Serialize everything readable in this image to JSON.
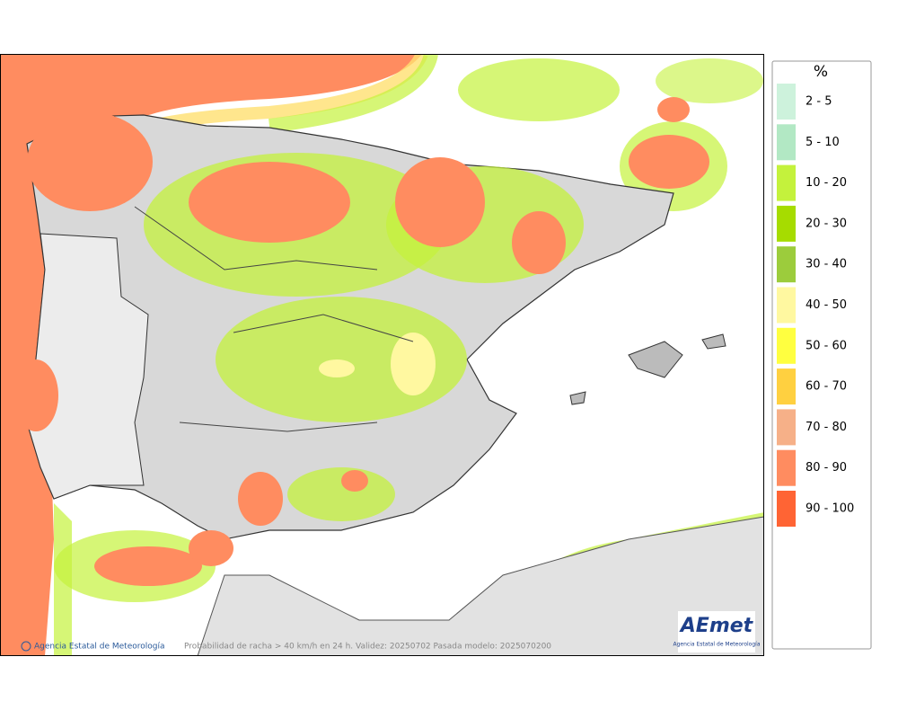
{
  "legend": {
    "title": "%",
    "items": [
      {
        "label": "2 - 5",
        "color": "#cdf2dc"
      },
      {
        "label": "5 - 10",
        "color": "#b2e8c4"
      },
      {
        "label": "10 - 20",
        "color": "#c4f23c"
      },
      {
        "label": "20 - 30",
        "color": "#a6dc00"
      },
      {
        "label": "30 - 40",
        "color": "#9ccc3c"
      },
      {
        "label": "40 - 50",
        "color": "#fff8a0"
      },
      {
        "label": "50 - 60",
        "color": "#ffff40"
      },
      {
        "label": "60 - 70",
        "color": "#ffd040"
      },
      {
        "label": "70 - 80",
        "color": "#f6b088"
      },
      {
        "label": "80 - 90",
        "color": "#ff8c60"
      },
      {
        "label": "90 - 100",
        "color": "#ff6434"
      }
    ]
  },
  "footer": {
    "credit": "Agencia Estatal de Meteorología",
    "caption": "Probabilidad de racha > 40 km/h en 24 h. Validez: 20250702 Pasada modelo: 2025070200"
  },
  "logo": {
    "name": "AEmet",
    "subtitle": "Agencia Estatal de Meteorología"
  }
}
